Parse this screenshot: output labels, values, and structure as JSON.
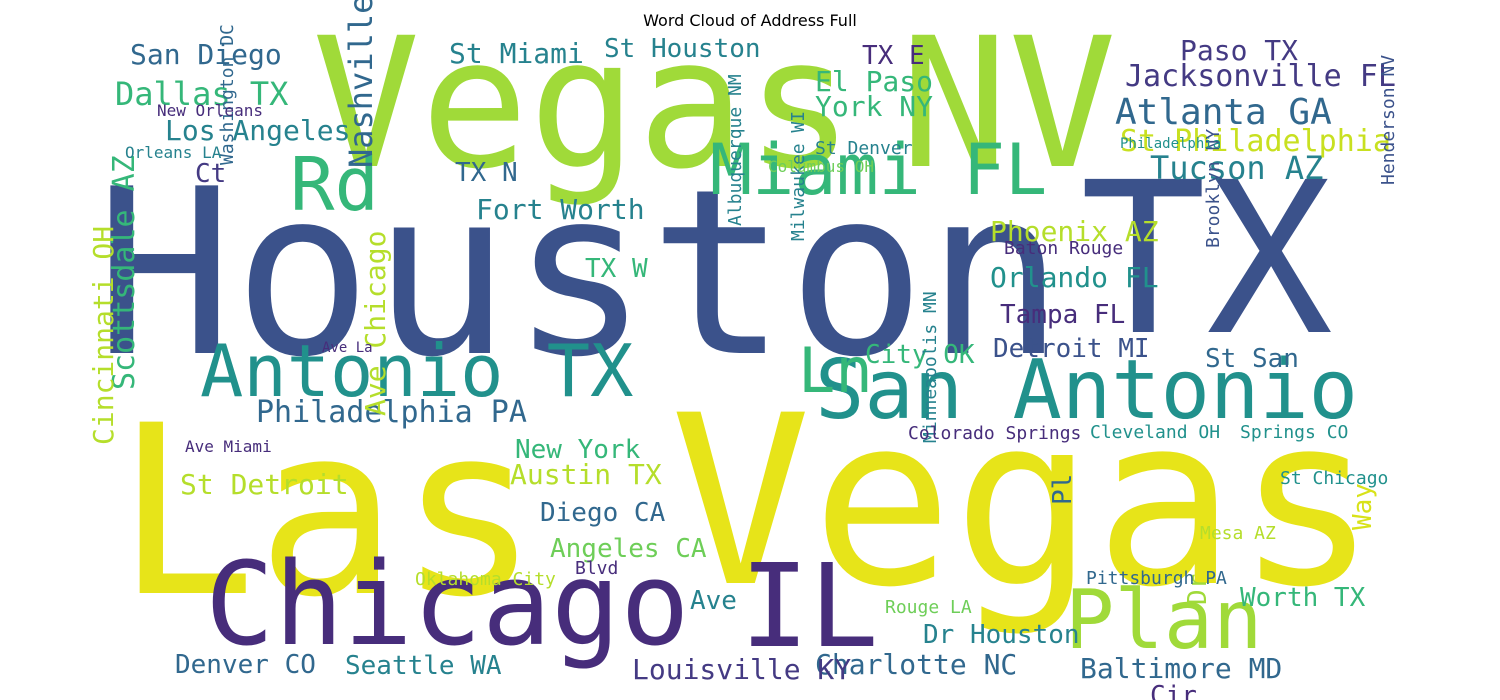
{
  "chart_data": {
    "type": "wordcloud",
    "title": "Word Cloud of Address Full",
    "palette": "viridis",
    "words": [
      {
        "text": "Houston",
        "weight": 1.0,
        "color": "#3b528b"
      },
      {
        "text": "TX",
        "weight": 0.85,
        "color": "#3b528b"
      },
      {
        "text": "Las",
        "weight": 0.95,
        "color": "#e7e419"
      },
      {
        "text": "Vegas",
        "weight": 0.95,
        "color": "#e7e419"
      },
      {
        "text": "Vegas",
        "weight": 0.92,
        "color": "#a0da39"
      },
      {
        "text": "NV",
        "weight": 0.9,
        "color": "#a0da39"
      },
      {
        "text": "Chicago",
        "weight": 0.58,
        "color": "#472d7b"
      },
      {
        "text": "IL",
        "weight": 0.55,
        "color": "#472d7b"
      },
      {
        "text": "San Antonio",
        "weight": 0.5,
        "color": "#21918c"
      },
      {
        "text": "Antonio TX",
        "weight": 0.48,
        "color": "#21918c"
      },
      {
        "text": "Plan",
        "weight": 0.48,
        "color": "#a0da39"
      },
      {
        "text": "Miami FL",
        "weight": 0.42,
        "color": "#35b779"
      },
      {
        "text": "Rd",
        "weight": 0.42,
        "color": "#35b779"
      },
      {
        "text": "Ln",
        "weight": 0.36,
        "color": "#35b779"
      },
      {
        "text": "Atlanta GA",
        "weight": 0.26,
        "color": "#31688e"
      },
      {
        "text": "Jacksonville FL",
        "weight": 0.22,
        "color": "#443a83"
      },
      {
        "text": "Nashville TN",
        "weight": 0.22,
        "color": "#31688e"
      },
      {
        "text": "Philadelphia PA",
        "weight": 0.22,
        "color": "#31688e"
      },
      {
        "text": "Dallas TX",
        "weight": 0.22,
        "color": "#35b779"
      },
      {
        "text": "Tucson AZ",
        "weight": 0.22,
        "color": "#26828e"
      },
      {
        "text": "St Philadelphia",
        "weight": 0.22,
        "color": "#c8e020"
      },
      {
        "text": "Los Angeles",
        "weight": 0.2,
        "color": "#26828e"
      },
      {
        "text": "San Diego",
        "weight": 0.2,
        "color": "#31688e"
      },
      {
        "text": "Fort Worth",
        "weight": 0.2,
        "color": "#26828e"
      },
      {
        "text": "Phoenix AZ",
        "weight": 0.2,
        "color": "#b5de2b"
      },
      {
        "text": "Orlando FL",
        "weight": 0.2,
        "color": "#21918c"
      },
      {
        "text": "Austin TX",
        "weight": 0.2,
        "color": "#b5de2b"
      },
      {
        "text": "St Detroit",
        "weight": 0.2,
        "color": "#b5de2b"
      },
      {
        "text": "Charlotte NC",
        "weight": 0.2,
        "color": "#31688e"
      },
      {
        "text": "Baltimore MD",
        "weight": 0.2,
        "color": "#31688e"
      },
      {
        "text": "Louisville KY",
        "weight": 0.2,
        "color": "#443a83"
      },
      {
        "text": "Scottsdale AZ",
        "weight": 0.2,
        "color": "#35b779"
      },
      {
        "text": "Cincinnati OH",
        "weight": 0.18,
        "color": "#b5de2b"
      },
      {
        "text": "Ave Chicago",
        "weight": 0.18,
        "color": "#b5de2b"
      },
      {
        "text": "Paso TX",
        "weight": 0.18,
        "color": "#443a83"
      },
      {
        "text": "El Paso",
        "weight": 0.18,
        "color": "#35b779"
      },
      {
        "text": "York NY",
        "weight": 0.18,
        "color": "#35b779"
      },
      {
        "text": "St Miami",
        "weight": 0.18,
        "color": "#26828e"
      },
      {
        "text": "St Houston",
        "weight": 0.18,
        "color": "#26828e"
      },
      {
        "text": "TX E",
        "weight": 0.18,
        "color": "#472d7b"
      },
      {
        "text": "TX N",
        "weight": 0.18,
        "color": "#31688e"
      },
      {
        "text": "TX W",
        "weight": 0.18,
        "color": "#35b779"
      },
      {
        "text": "Ct",
        "weight": 0.18,
        "color": "#443a83"
      },
      {
        "text": "Tampa FL",
        "weight": 0.18,
        "color": "#472d7b"
      },
      {
        "text": "Detroit MI",
        "weight": 0.18,
        "color": "#3b528b"
      },
      {
        "text": "New York",
        "weight": 0.18,
        "color": "#35b779"
      },
      {
        "text": "Diego CA",
        "weight": 0.18,
        "color": "#31688e"
      },
      {
        "text": "Angeles CA",
        "weight": 0.18,
        "color": "#6ece58"
      },
      {
        "text": "Denver CO",
        "weight": 0.18,
        "color": "#31688e"
      },
      {
        "text": "Seattle WA",
        "weight": 0.18,
        "color": "#26828e"
      },
      {
        "text": "Dr Houston",
        "weight": 0.18,
        "color": "#26828e"
      },
      {
        "text": "Worth TX",
        "weight": 0.18,
        "color": "#35b779"
      },
      {
        "text": "City OK",
        "weight": 0.18,
        "color": "#35b779"
      },
      {
        "text": "St San",
        "weight": 0.18,
        "color": "#31688e"
      },
      {
        "text": "Ave",
        "weight": 0.18,
        "color": "#26828e"
      },
      {
        "text": "Dr",
        "weight": 0.18,
        "color": "#a0da39"
      },
      {
        "text": "Way",
        "weight": 0.18,
        "color": "#d8e219"
      },
      {
        "text": "Pl",
        "weight": 0.18,
        "color": "#31688e"
      },
      {
        "text": "Cir",
        "weight": 0.18,
        "color": "#472d7b"
      },
      {
        "text": "St Denver",
        "weight": 0.14,
        "color": "#26828e"
      },
      {
        "text": "Washington DC",
        "weight": 0.14,
        "color": "#31688e"
      },
      {
        "text": "Albuquerque NM",
        "weight": 0.14,
        "color": "#26828e"
      },
      {
        "text": "Milwaukee WI",
        "weight": 0.14,
        "color": "#26828e"
      },
      {
        "text": "Minneapolis MN",
        "weight": 0.12,
        "color": "#26828e"
      },
      {
        "text": "Brooklyn NY",
        "weight": 0.12,
        "color": "#3b528b"
      },
      {
        "text": "Henderson NV",
        "weight": 0.12,
        "color": "#3b528b"
      },
      {
        "text": "Baton Rouge",
        "weight": 0.12,
        "color": "#472d7b"
      },
      {
        "text": "Colorado Springs",
        "weight": 0.12,
        "color": "#472d7b"
      },
      {
        "text": "Cleveland OH",
        "weight": 0.12,
        "color": "#21918c"
      },
      {
        "text": "Springs CO",
        "weight": 0.12,
        "color": "#21918c"
      },
      {
        "text": "Philadelphia",
        "weight": 0.1,
        "color": "#21918c"
      },
      {
        "text": "Pittsburgh PA",
        "weight": 0.12,
        "color": "#31688e"
      },
      {
        "text": "Oklahoma City",
        "weight": 0.12,
        "color": "#b5de2b"
      },
      {
        "text": "Rouge LA",
        "weight": 0.12,
        "color": "#6ece58"
      },
      {
        "text": "Mesa AZ",
        "weight": 0.12,
        "color": "#b5de2b"
      },
      {
        "text": "St Chicago",
        "weight": 0.12,
        "color": "#21918c"
      },
      {
        "text": "Blvd",
        "weight": 0.12,
        "color": "#472d7b"
      },
      {
        "text": "Columbus OH",
        "weight": 0.12,
        "color": "#6ece58"
      },
      {
        "text": "New Orleans",
        "weight": 0.12,
        "color": "#472d7b"
      },
      {
        "text": "Orleans LA",
        "weight": 0.12,
        "color": "#26828e"
      },
      {
        "text": "Ave Miami",
        "weight": 0.12,
        "color": "#472d7b"
      },
      {
        "text": "Ave La",
        "weight": 0.12,
        "color": "#472d7b"
      }
    ]
  }
}
